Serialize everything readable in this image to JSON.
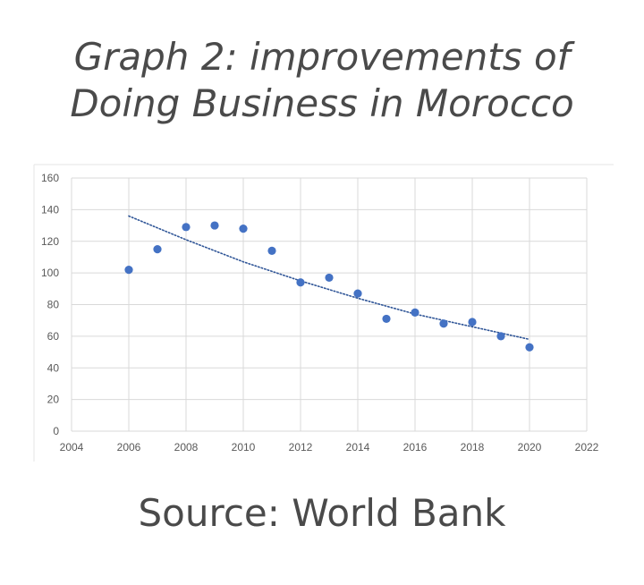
{
  "title_lines": [
    "Graph 2: improvements of",
    "Doing Business in Morocco"
  ],
  "source": "Source: World Bank",
  "chart_data": {
    "type": "scatter",
    "title": "",
    "xlabel": "",
    "ylabel": "",
    "xlim": [
      2004,
      2022
    ],
    "ylim": [
      0,
      160
    ],
    "xticks": [
      2004,
      2006,
      2008,
      2010,
      2012,
      2014,
      2016,
      2018,
      2020,
      2022
    ],
    "yticks": [
      0,
      20,
      40,
      60,
      80,
      100,
      120,
      140,
      160
    ],
    "grid": true,
    "points": [
      {
        "x": 2006,
        "y": 102
      },
      {
        "x": 2007,
        "y": 115
      },
      {
        "x": 2008,
        "y": 129
      },
      {
        "x": 2009,
        "y": 130
      },
      {
        "x": 2010,
        "y": 128
      },
      {
        "x": 2011,
        "y": 114
      },
      {
        "x": 2012,
        "y": 94
      },
      {
        "x": 2013,
        "y": 97
      },
      {
        "x": 2014,
        "y": 87
      },
      {
        "x": 2015,
        "y": 71
      },
      {
        "x": 2016,
        "y": 75
      },
      {
        "x": 2017,
        "y": 68
      },
      {
        "x": 2018,
        "y": 69
      },
      {
        "x": 2019,
        "y": 60
      },
      {
        "x": 2020,
        "y": 53
      }
    ],
    "trendline": {
      "style": "dotted",
      "points": [
        {
          "x": 2006,
          "y": 136
        },
        {
          "x": 2008,
          "y": 121
        },
        {
          "x": 2010,
          "y": 107
        },
        {
          "x": 2012,
          "y": 95
        },
        {
          "x": 2014,
          "y": 84
        },
        {
          "x": 2016,
          "y": 74
        },
        {
          "x": 2018,
          "y": 66
        },
        {
          "x": 2020,
          "y": 58
        }
      ]
    },
    "colors": {
      "point": "#4472c4",
      "trendline": "#2f5597",
      "grid": "#d9d9d9",
      "tick_label": "#595959"
    }
  }
}
